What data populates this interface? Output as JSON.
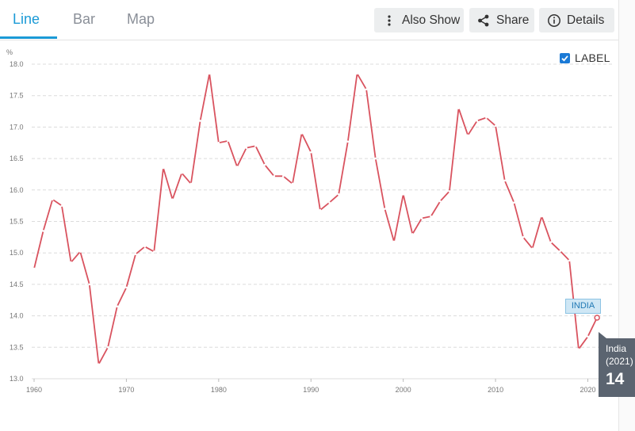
{
  "tabs": [
    {
      "label": "Line",
      "active": true
    },
    {
      "label": "Bar",
      "active": false
    },
    {
      "label": "Map",
      "active": false
    }
  ],
  "toolbar": {
    "also_show": "Also Show",
    "share": "Share",
    "details": "Details"
  },
  "label_toggle": {
    "label": "LABEL",
    "checked": true
  },
  "tooltip": {
    "name": "India",
    "year": "(2021)",
    "value": "14"
  },
  "series_tag": "INDIA",
  "colors": {
    "accent": "#1b9ad6",
    "line": "#d9535f",
    "tooltip_bg": "#5b6470"
  },
  "icons": {
    "also_show": "more-vertical-icon",
    "share": "share-icon",
    "details": "info-icon",
    "checkbox": "checkmark-icon"
  },
  "chart_data": {
    "type": "line",
    "ylabel": "%",
    "xlabel": "",
    "ylim": [
      13.0,
      18.0
    ],
    "xlim": [
      1960,
      2021
    ],
    "grid": true,
    "y_ticks": [
      "13.0",
      "13.5",
      "14.0",
      "14.5",
      "15.0",
      "15.5",
      "16.0",
      "16.5",
      "17.0",
      "17.5",
      "18.0"
    ],
    "x_ticks": [
      "1960",
      "1970",
      "1980",
      "1990",
      "2000",
      "2010",
      "2020"
    ],
    "series": [
      {
        "name": "INDIA",
        "x": [
          1960,
          1961,
          1962,
          1963,
          1964,
          1965,
          1966,
          1967,
          1968,
          1969,
          1970,
          1971,
          1972,
          1973,
          1974,
          1975,
          1976,
          1977,
          1978,
          1979,
          1980,
          1981,
          1982,
          1983,
          1984,
          1985,
          1986,
          1987,
          1988,
          1989,
          1990,
          1991,
          1992,
          1993,
          1994,
          1995,
          1996,
          1997,
          1998,
          1999,
          2000,
          2001,
          2002,
          2003,
          2004,
          2005,
          2006,
          2007,
          2008,
          2009,
          2010,
          2011,
          2012,
          2013,
          2014,
          2015,
          2016,
          2017,
          2018,
          2019,
          2020,
          2021
        ],
        "y": [
          14.75,
          15.35,
          15.85,
          15.75,
          14.85,
          15.02,
          14.5,
          13.23,
          13.5,
          14.15,
          14.45,
          14.98,
          15.1,
          15.02,
          16.35,
          15.85,
          16.27,
          16.1,
          17.1,
          17.85,
          16.75,
          16.78,
          16.37,
          16.67,
          16.7,
          16.4,
          16.22,
          16.22,
          16.1,
          16.9,
          16.6,
          15.68,
          15.8,
          15.93,
          16.77,
          17.85,
          17.6,
          16.5,
          15.7,
          15.18,
          15.93,
          15.3,
          15.55,
          15.58,
          15.82,
          15.98,
          17.3,
          16.87,
          17.1,
          17.15,
          17.02,
          16.15,
          15.8,
          15.25,
          15.07,
          15.58,
          15.17,
          15.03,
          14.88,
          13.47,
          13.67,
          13.97
        ]
      }
    ]
  }
}
